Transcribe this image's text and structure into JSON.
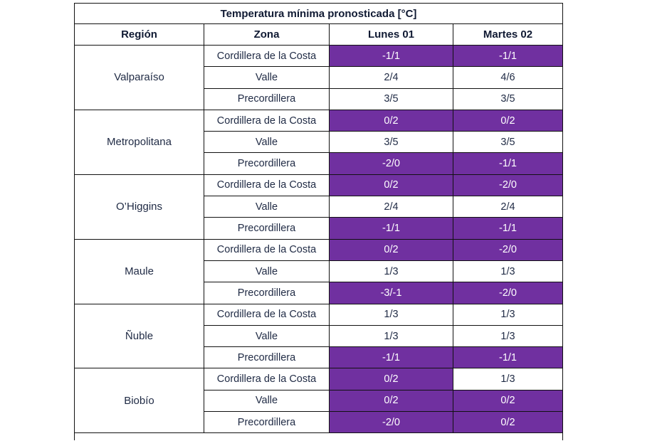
{
  "table": {
    "title": "Temperatura mínima pronosticada [°C]",
    "headers": [
      "Región",
      "Zona",
      "Lunes 01",
      "Martes 02"
    ],
    "highlight_color": "#7030a0",
    "regions": [
      {
        "name": "Valparaíso",
        "zones": [
          {
            "zone": "Cordillera de la Costa",
            "lunes": "-1/1",
            "martes": "-1/1",
            "lunes_highlight": true,
            "martes_highlight": true
          },
          {
            "zone": "Valle",
            "lunes": "2/4",
            "martes": "4/6",
            "lunes_highlight": false,
            "martes_highlight": false
          },
          {
            "zone": "Precordillera",
            "lunes": "3/5",
            "martes": "3/5",
            "lunes_highlight": false,
            "martes_highlight": false
          }
        ]
      },
      {
        "name": "Metropolitana",
        "zones": [
          {
            "zone": "Cordillera de la Costa",
            "lunes": "0/2",
            "martes": "0/2",
            "lunes_highlight": true,
            "martes_highlight": true
          },
          {
            "zone": "Valle",
            "lunes": "3/5",
            "martes": "3/5",
            "lunes_highlight": false,
            "martes_highlight": false
          },
          {
            "zone": "Precordillera",
            "lunes": "-2/0",
            "martes": "-1/1",
            "lunes_highlight": true,
            "martes_highlight": true
          }
        ]
      },
      {
        "name": "O’Higgins",
        "zones": [
          {
            "zone": "Cordillera de la Costa",
            "lunes": "0/2",
            "martes": "-2/0",
            "lunes_highlight": true,
            "martes_highlight": true
          },
          {
            "zone": "Valle",
            "lunes": "2/4",
            "martes": "2/4",
            "lunes_highlight": false,
            "martes_highlight": false
          },
          {
            "zone": "Precordillera",
            "lunes": "-1/1",
            "martes": "-1/1",
            "lunes_highlight": true,
            "martes_highlight": true
          }
        ]
      },
      {
        "name": "Maule",
        "zones": [
          {
            "zone": "Cordillera de la Costa",
            "lunes": "0/2",
            "martes": "-2/0",
            "lunes_highlight": true,
            "martes_highlight": true
          },
          {
            "zone": "Valle",
            "lunes": "1/3",
            "martes": "1/3",
            "lunes_highlight": false,
            "martes_highlight": false
          },
          {
            "zone": "Precordillera",
            "lunes": "-3/-1",
            "martes": "-2/0",
            "lunes_highlight": true,
            "martes_highlight": true
          }
        ]
      },
      {
        "name": "Ñuble",
        "zones": [
          {
            "zone": "Cordillera de la Costa",
            "lunes": "1/3",
            "martes": "1/3",
            "lunes_highlight": false,
            "martes_highlight": false
          },
          {
            "zone": "Valle",
            "lunes": "1/3",
            "martes": "1/3",
            "lunes_highlight": false,
            "martes_highlight": false
          },
          {
            "zone": "Precordillera",
            "lunes": "-1/1",
            "martes": "-1/1",
            "lunes_highlight": true,
            "martes_highlight": true
          }
        ]
      },
      {
        "name": "Biobío",
        "zones": [
          {
            "zone": "Cordillera de la Costa",
            "lunes": "0/2",
            "martes": "1/3",
            "lunes_highlight": true,
            "martes_highlight": false
          },
          {
            "zone": "Valle",
            "lunes": "0/2",
            "martes": "0/2",
            "lunes_highlight": true,
            "martes_highlight": true
          },
          {
            "zone": "Precordillera",
            "lunes": "-2/0",
            "martes": "0/2",
            "lunes_highlight": true,
            "martes_highlight": true
          }
        ]
      }
    ]
  }
}
